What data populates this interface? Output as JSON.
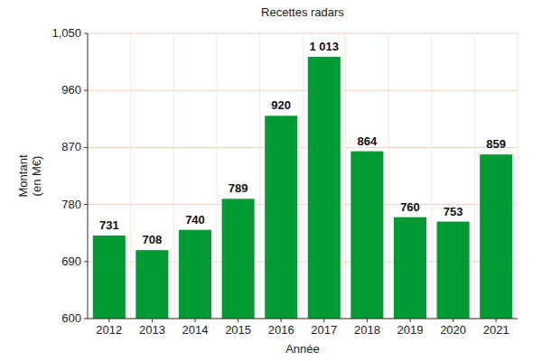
{
  "chart_data": {
    "type": "bar",
    "title": "Recettes radars",
    "x_label": "Année",
    "y_label": "Montant\n(en M€)",
    "categories": [
      "2012",
      "2013",
      "2014",
      "2015",
      "2016",
      "2017",
      "2018",
      "2019",
      "2020",
      "2021"
    ],
    "values": [
      731,
      708,
      740,
      789,
      920,
      1013,
      864,
      760,
      753,
      859
    ],
    "value_labels": [
      "731",
      "708",
      "740",
      "789",
      "920",
      "1 013",
      "864",
      "760",
      "753",
      "859"
    ],
    "color": "#009933",
    "ylim": [
      600,
      1050
    ],
    "yticks": [
      600,
      690,
      780,
      870,
      960,
      {
        "value": 1050,
        "label": "1,050"
      }
    ],
    "grid": true,
    "data_labels": true
  }
}
